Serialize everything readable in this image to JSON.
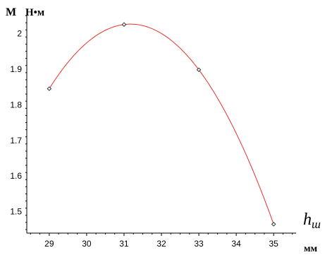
{
  "chart_data": {
    "type": "line",
    "ylabel": "M",
    "yunit": "Н•м",
    "xlabel": "h_ш",
    "xlabel_main": "h",
    "xlabel_sub": "ш",
    "xunit": "мм",
    "xlim": [
      28.4,
      35.6
    ],
    "ylim": [
      1.44,
      2.07
    ],
    "xticks": [
      29,
      30,
      31,
      32,
      33,
      34,
      35
    ],
    "yticks": [
      1.5,
      1.6,
      1.7,
      1.8,
      1.9,
      2
    ],
    "ytick_labels": [
      "1.5",
      "1.6",
      "1.7",
      "1.8",
      "1.9",
      "2"
    ],
    "series": [
      {
        "points": [
          {
            "x": 29,
            "y": 1.845
          },
          {
            "x": 31,
            "y": 2.025
          },
          {
            "x": 33,
            "y": 1.898
          },
          {
            "x": 35,
            "y": 1.465
          }
        ],
        "color": "#e8322a"
      }
    ],
    "grid": false
  }
}
